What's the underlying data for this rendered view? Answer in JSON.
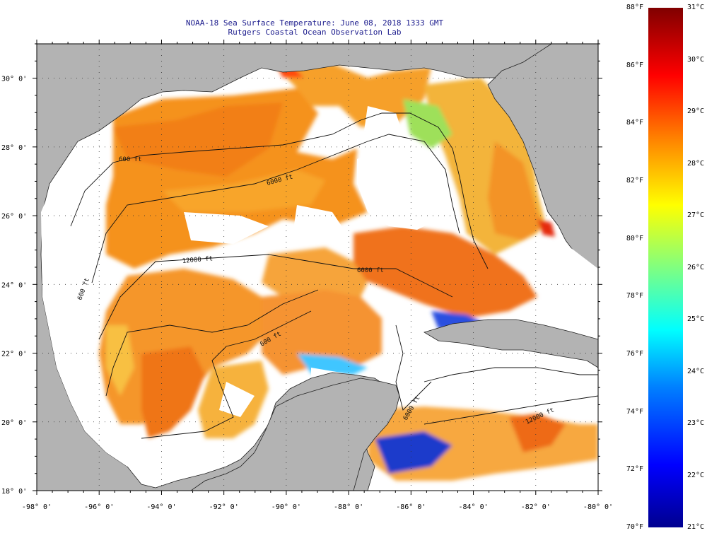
{
  "title": {
    "line1": "NOAA-18 Sea Surface Temperature:  June 08, 2018 1333 GMT",
    "line2": "Rutgers Coastal Ocean Observation Lab"
  },
  "axes": {
    "lat_labels": [
      "30° 0'",
      "28° 0'",
      "26° 0'",
      "24° 0'",
      "22° 0'",
      "20° 0'",
      "18° 0'"
    ],
    "lon_labels": [
      "-98° 0'",
      "-96° 0'",
      "-94° 0'",
      "-92° 0'",
      "-90° 0'",
      "-88° 0'",
      "-86° 0'",
      "-84° 0'",
      "-82° 0'",
      "-80° 0'"
    ],
    "lat_values": [
      30,
      28,
      26,
      24,
      22,
      20,
      18
    ],
    "lon_values": [
      -98,
      -96,
      -94,
      -92,
      -90,
      -88,
      -86,
      -84,
      -82,
      -80
    ]
  },
  "contours": [
    {
      "label": "600 ft"
    },
    {
      "label": "6000 ft"
    },
    {
      "label": "12000 ft"
    },
    {
      "label": "600 ft"
    },
    {
      "label": "600 ft"
    },
    {
      "label": "6000 ft"
    },
    {
      "label": "12000 ft"
    },
    {
      "label": "6000 ft"
    }
  ],
  "colorbar": {
    "fahrenheit": [
      "88°F",
      "86°F",
      "84°F",
      "82°F",
      "80°F",
      "78°F",
      "76°F",
      "74°F",
      "72°F",
      "70°F"
    ],
    "celsius": [
      "31°C",
      "30°C",
      "29°C",
      "28°C",
      "27°C",
      "26°C",
      "25°C",
      "24°C",
      "23°C",
      "22°C",
      "21°C"
    ],
    "f_range": [
      70,
      88
    ],
    "c_range": [
      21,
      31
    ]
  },
  "colors": {
    "land": "#b3b3b3",
    "nodata": "#ffffff",
    "warm": "#f28a1d",
    "hot": "#ff4d00",
    "mid": "#ffd000",
    "cool": "#2a6cff",
    "cold": "#0a12a8"
  }
}
